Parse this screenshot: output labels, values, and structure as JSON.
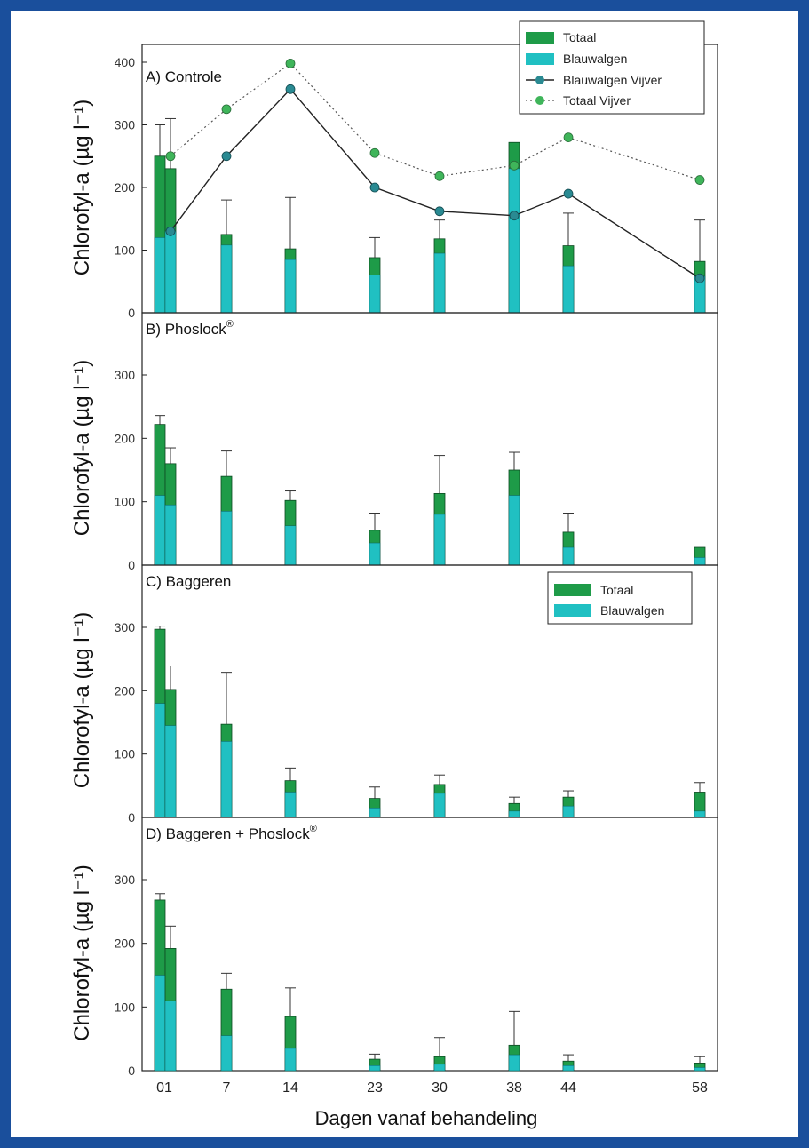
{
  "x_axis_label": "Dagen vanaf behandeling",
  "colors": {
    "totaal": "#1e9b48",
    "blauwalgen": "#20c0c2",
    "vijver_blue": "#2a8a92",
    "vijver_total": "#3fb55a",
    "frame": "#1a4f9c"
  },
  "legend": {
    "totaal": "Totaal",
    "blauwalgen": "Blauwalgen",
    "blauwalgen_vijver": "Blauwalgen Vijver",
    "totaal_vijver": "Totaal Vijver"
  },
  "chart_data": [
    {
      "type": "bar",
      "panel": "A) Controle",
      "ylabel": "Chlorofyl-a (µg l⁻¹)",
      "ylim": [
        0,
        400
      ],
      "yticks": [
        "0",
        "100",
        "200",
        "300",
        "400"
      ],
      "x_ticks": [
        "01",
        "7",
        "14",
        "23",
        "30",
        "38",
        "44",
        "58"
      ],
      "x": [
        "0",
        "1",
        "7",
        "14",
        "23",
        "30",
        "38",
        "44",
        "58"
      ],
      "series": [
        {
          "name": "Totaal",
          "values": [
            250,
            230,
            125,
            102,
            88,
            118,
            272,
            107,
            82
          ],
          "err": [
            50,
            80,
            55,
            82,
            32,
            30,
            0,
            52,
            66
          ]
        },
        {
          "name": "Blauwalgen",
          "values": [
            120,
            130,
            108,
            85,
            60,
            95,
            230,
            75,
            58
          ]
        },
        {
          "name": "Blauwalgen Vijver",
          "x": [
            1,
            7,
            14,
            23,
            30,
            38,
            44,
            58
          ],
          "values": [
            130,
            250,
            357,
            200,
            162,
            155,
            190,
            55
          ]
        },
        {
          "name": "Totaal Vijver",
          "x": [
            1,
            7,
            14,
            23,
            30,
            38,
            44,
            58
          ],
          "values": [
            250,
            325,
            398,
            255,
            218,
            235,
            280,
            212
          ]
        }
      ],
      "legend_position": "top-right"
    },
    {
      "type": "bar",
      "panel": "B) Phoslock",
      "ylabel": "Chlorofyl-a (µg l⁻¹)",
      "ylim": [
        0,
        300
      ],
      "yticks": [
        "0",
        "100",
        "200",
        "300"
      ],
      "x_ticks": [
        "01",
        "7",
        "14",
        "23",
        "30",
        "38",
        "44",
        "58"
      ],
      "x": [
        "0",
        "1",
        "7",
        "14",
        "23",
        "30",
        "38",
        "44",
        "58"
      ],
      "series": [
        {
          "name": "Totaal",
          "values": [
            222,
            160,
            140,
            102,
            55,
            113,
            150,
            52,
            28
          ],
          "err": [
            14,
            25,
            40,
            15,
            27,
            60,
            28,
            30,
            0
          ]
        },
        {
          "name": "Blauwalgen",
          "values": [
            110,
            95,
            85,
            62,
            35,
            80,
            110,
            28,
            12
          ]
        }
      ]
    },
    {
      "type": "bar",
      "panel": "C) Baggeren",
      "ylabel": "Chlorofyl-a (µg l⁻¹)",
      "ylim": [
        0,
        300
      ],
      "yticks": [
        "0",
        "100",
        "200",
        "300"
      ],
      "x_ticks": [
        "01",
        "7",
        "14",
        "23",
        "30",
        "38",
        "44",
        "58"
      ],
      "x": [
        "0",
        "1",
        "7",
        "14",
        "23",
        "30",
        "38",
        "44",
        "58"
      ],
      "series": [
        {
          "name": "Totaal",
          "values": [
            297,
            202,
            147,
            58,
            30,
            52,
            22,
            32,
            40
          ],
          "err": [
            5,
            37,
            82,
            20,
            18,
            15,
            10,
            10,
            15
          ]
        },
        {
          "name": "Blauwalgen",
          "values": [
            180,
            145,
            120,
            40,
            15,
            38,
            10,
            18,
            10
          ]
        }
      ],
      "legend_position": "top-right"
    },
    {
      "type": "bar",
      "panel": "D) Baggeren + Phoslock",
      "ylabel": "Chlorofyl-a (µg l⁻¹)",
      "ylim": [
        0,
        300
      ],
      "yticks": [
        "0",
        "100",
        "200",
        "300"
      ],
      "x_ticks": [
        "01",
        "7",
        "14",
        "23",
        "30",
        "38",
        "44",
        "58"
      ],
      "x": [
        "0",
        "1",
        "7",
        "14",
        "23",
        "30",
        "38",
        "44",
        "58"
      ],
      "series": [
        {
          "name": "Totaal",
          "values": [
            268,
            192,
            128,
            85,
            18,
            22,
            40,
            15,
            12
          ],
          "err": [
            10,
            35,
            25,
            45,
            8,
            30,
            53,
            10,
            10
          ]
        },
        {
          "name": "Blauwalgen",
          "values": [
            150,
            110,
            55,
            35,
            8,
            10,
            25,
            8,
            5
          ]
        }
      ]
    }
  ]
}
